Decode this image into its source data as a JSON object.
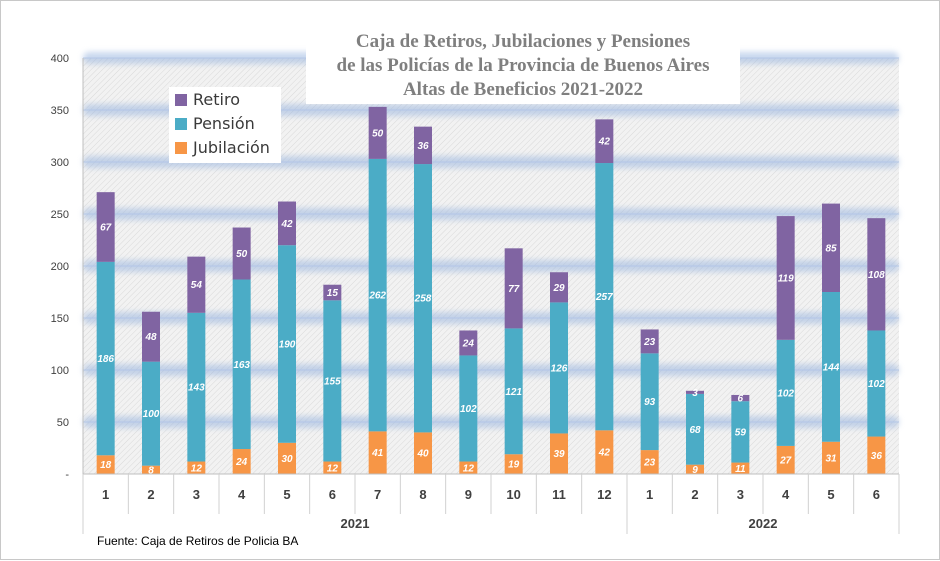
{
  "chart_data": {
    "type": "bar",
    "stacked": true,
    "title": [
      "Caja de Retiros, Jubilaciones y Pensiones",
      "de las Policías de la Provincia de Buenos Aires",
      "Altas de Beneficios 2021-2022"
    ],
    "categories": [
      "1",
      "2",
      "3",
      "4",
      "5",
      "6",
      "7",
      "8",
      "9",
      "10",
      "11",
      "12",
      "1",
      "2",
      "3",
      "4",
      "5",
      "6"
    ],
    "groups": [
      {
        "label": "2021",
        "count": 12
      },
      {
        "label": "2022",
        "count": 6
      }
    ],
    "series": [
      {
        "name": "Jubilación",
        "color": "#f79646",
        "values": [
          18,
          8,
          12,
          24,
          30,
          12,
          41,
          40,
          12,
          19,
          39,
          42,
          23,
          9,
          11,
          27,
          31,
          36
        ]
      },
      {
        "name": "Pensión",
        "color": "#4bacc6",
        "values": [
          186,
          100,
          143,
          163,
          190,
          155,
          262,
          258,
          102,
          121,
          126,
          257,
          93,
          68,
          59,
          102,
          144,
          102
        ]
      },
      {
        "name": "Retiro",
        "color": "#8064a2",
        "values": [
          67,
          48,
          54,
          50,
          42,
          15,
          50,
          36,
          24,
          77,
          29,
          42,
          23,
          3,
          6,
          119,
          85,
          108
        ]
      }
    ],
    "legend_order": [
      "Retiro",
      "Pensión",
      "Jubilación"
    ],
    "legend_position": "top-left",
    "ylim": [
      0,
      400
    ],
    "yticks": [
      "-",
      "50",
      "100",
      "150",
      "200",
      "250",
      "300",
      "350",
      "400"
    ],
    "grid": true
  },
  "source_text": "Fuente: Caja de Retiros de Policia BA"
}
